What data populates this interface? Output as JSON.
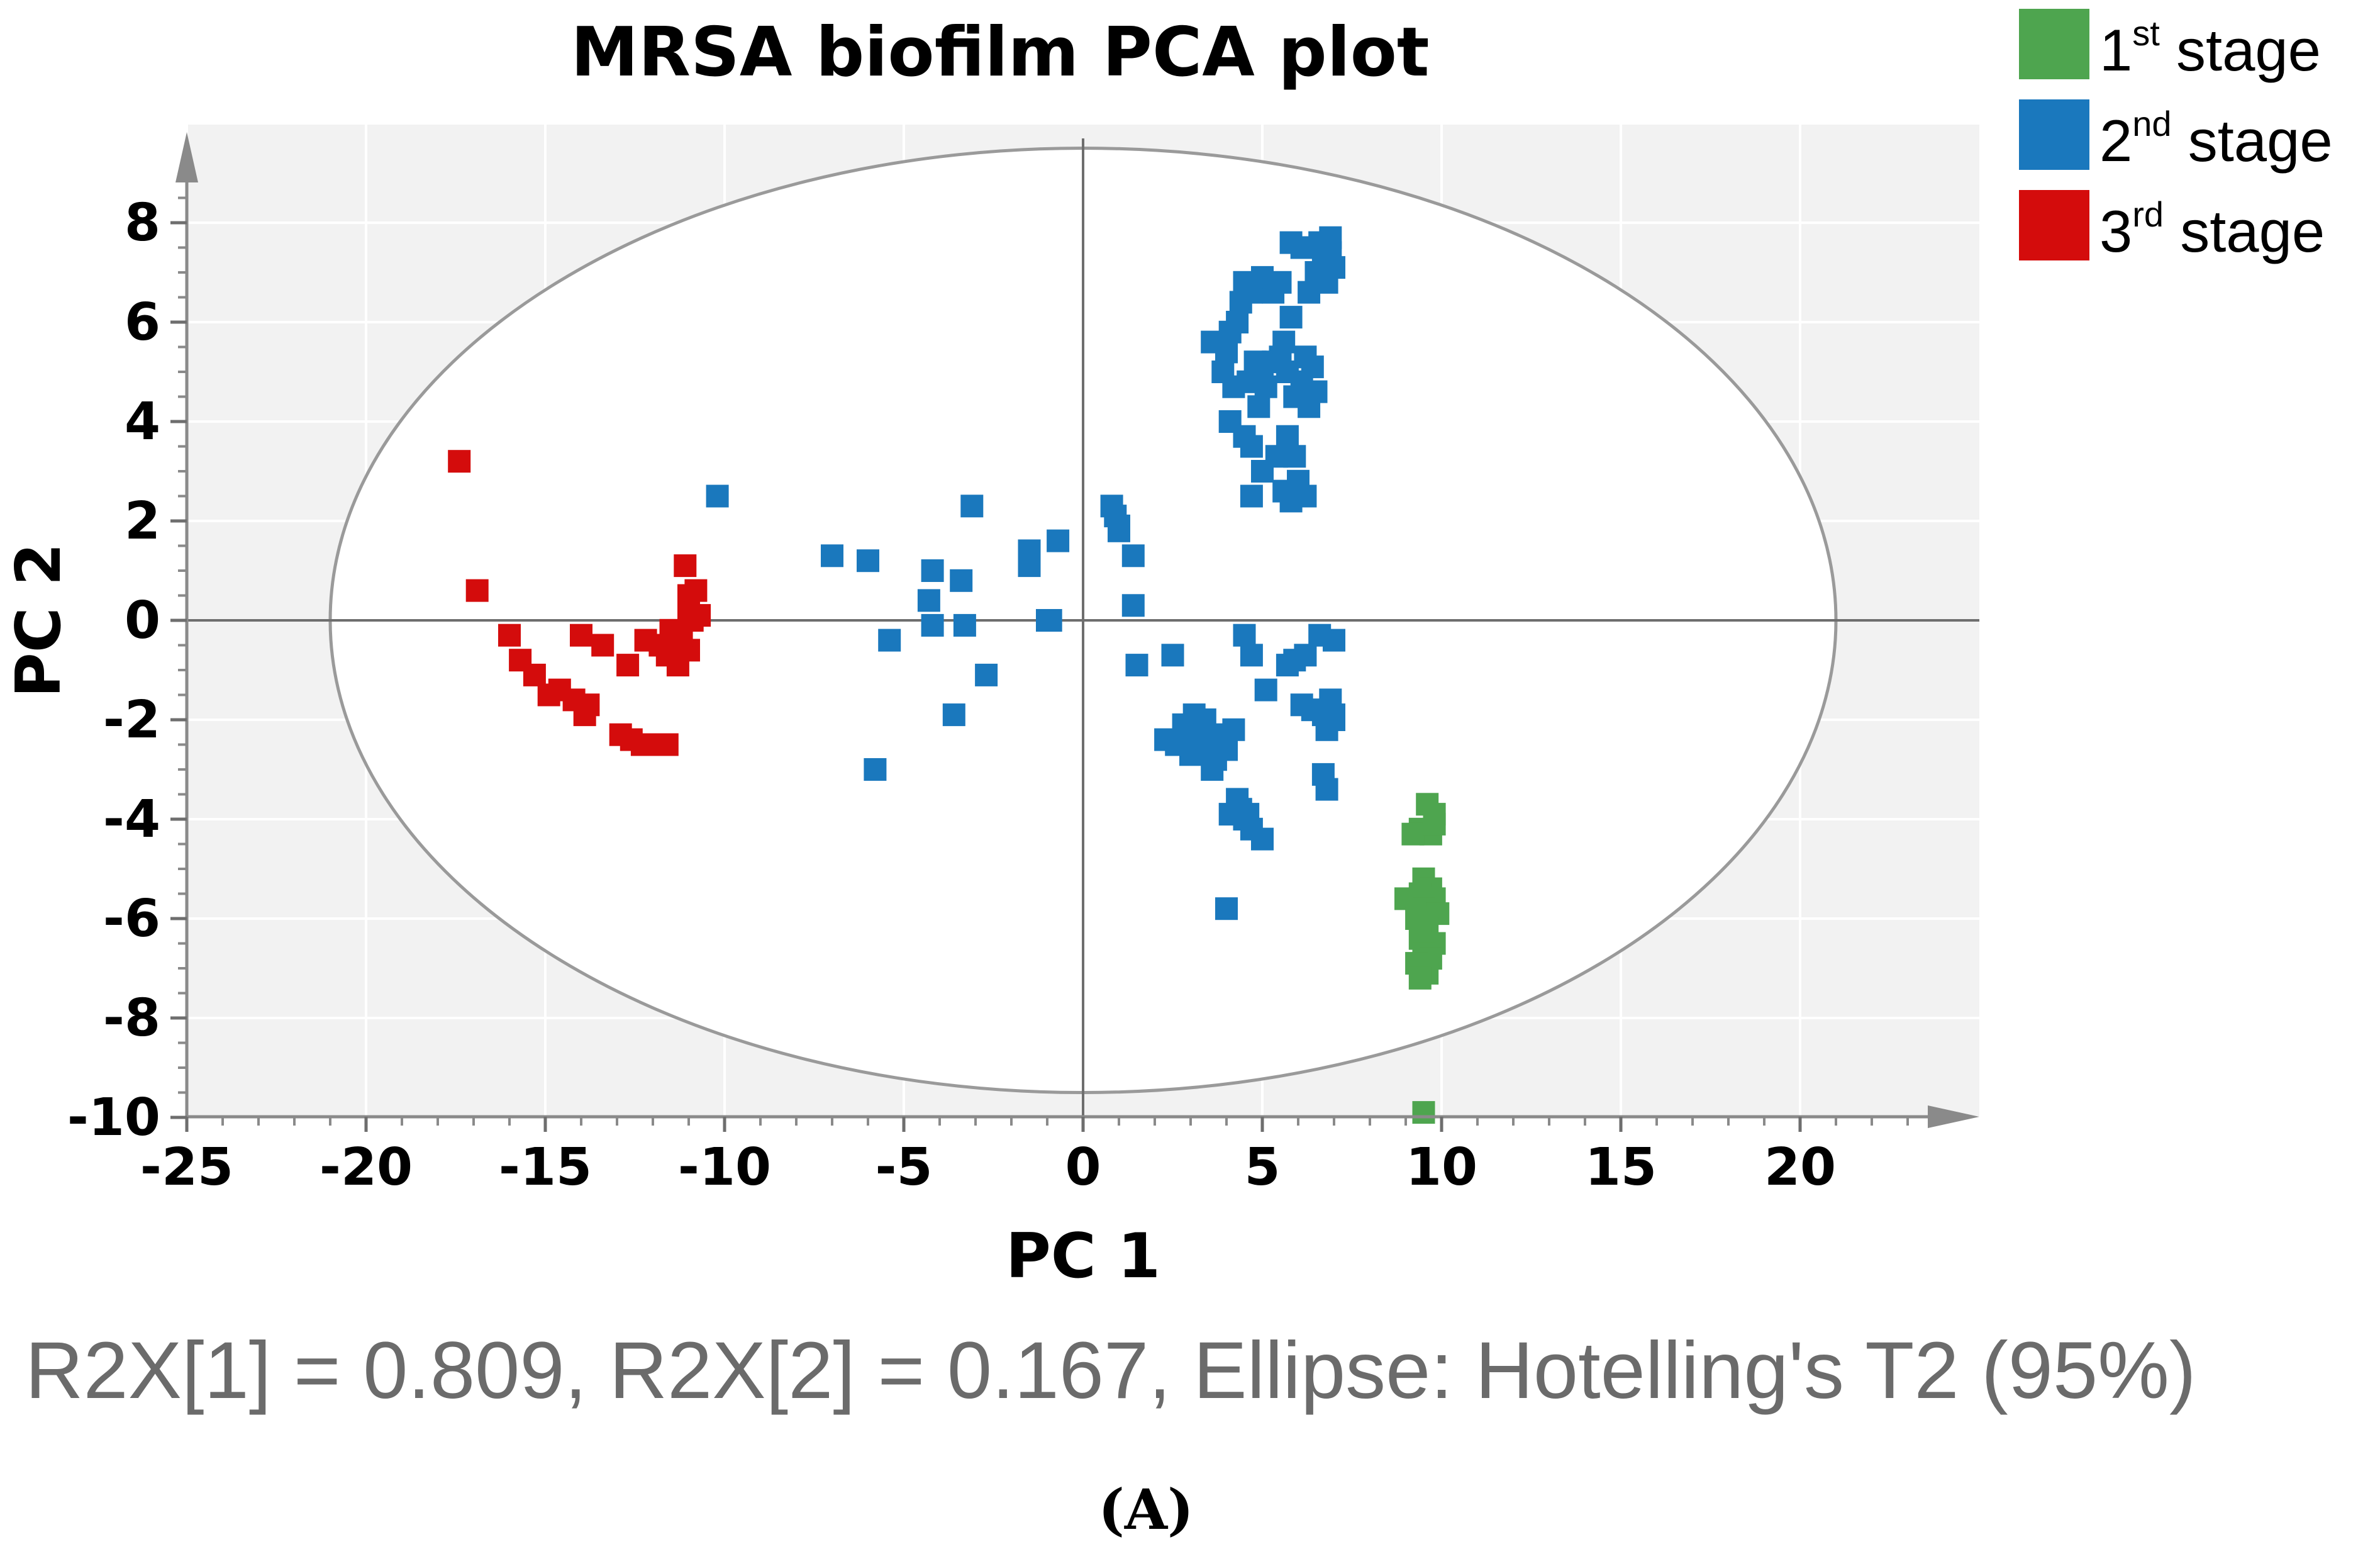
{
  "chart_data": {
    "type": "scatter",
    "title": "MRSA biofilm PCA plot",
    "xlabel": "PC 1",
    "ylabel": "PC 2",
    "xlim": [
      -25,
      25
    ],
    "ylim": [
      -10,
      10
    ],
    "xticks": [
      -25,
      -20,
      -15,
      -10,
      -5,
      0,
      5,
      10,
      15,
      20
    ],
    "yticks": [
      -10,
      -8,
      -6,
      -4,
      -2,
      0,
      2,
      4,
      6,
      8
    ],
    "grid": true,
    "legend_position": "top-right",
    "ellipse": {
      "label": "Hotelling's T2 (95%)",
      "cx": 0,
      "cy": 0,
      "rx": 21,
      "ry": 9.5
    },
    "footnote": "R2X[1] = 0.809, R2X[2] = 0.167, Ellipse: Hotelling's T2 (95%)",
    "panel_label": "(A)",
    "series": [
      {
        "name": "1st stage",
        "num": "1",
        "sup": "st",
        "word": "stage",
        "color": "#4ea54f",
        "points": [
          [
            9.6,
            -3.7
          ],
          [
            9.8,
            -3.9
          ],
          [
            9.4,
            -4.2
          ],
          [
            9.7,
            -4.3
          ],
          [
            9.2,
            -4.3
          ],
          [
            9.8,
            -4.1
          ],
          [
            9.5,
            -5.2
          ],
          [
            9.7,
            -5.4
          ],
          [
            9.4,
            -5.5
          ],
          [
            9.0,
            -5.6
          ],
          [
            9.8,
            -5.6
          ],
          [
            9.5,
            -5.8
          ],
          [
            9.9,
            -5.9
          ],
          [
            9.3,
            -6.0
          ],
          [
            9.6,
            -6.2
          ],
          [
            9.4,
            -6.4
          ],
          [
            9.8,
            -6.5
          ],
          [
            9.5,
            -6.7
          ],
          [
            9.7,
            -6.8
          ],
          [
            9.3,
            -6.9
          ],
          [
            9.6,
            -7.1
          ],
          [
            9.4,
            -7.2
          ],
          [
            9.5,
            -9.9
          ]
        ]
      },
      {
        "name": "2nd stage",
        "num": "2",
        "sup": "nd",
        "word": "stage",
        "color": "#1a78bd",
        "points": [
          [
            -10.2,
            2.5
          ],
          [
            -7.0,
            1.3
          ],
          [
            -6.0,
            1.2
          ],
          [
            -5.8,
            -3.0
          ],
          [
            -5.4,
            -0.4
          ],
          [
            -4.2,
            1.0
          ],
          [
            -4.3,
            0.4
          ],
          [
            -4.2,
            -0.1
          ],
          [
            -3.6,
            -1.9
          ],
          [
            -3.4,
            0.8
          ],
          [
            -3.3,
            -0.1
          ],
          [
            -3.1,
            2.3
          ],
          [
            -2.7,
            -1.1
          ],
          [
            -1.5,
            1.4
          ],
          [
            -1.5,
            1.1
          ],
          [
            -1.0,
            0.0
          ],
          [
            -0.9,
            0.0
          ],
          [
            -0.7,
            1.6
          ],
          [
            0.8,
            2.3
          ],
          [
            0.9,
            2.1
          ],
          [
            1.0,
            1.9
          ],
          [
            1.0,
            1.8
          ],
          [
            1.4,
            1.3
          ],
          [
            1.4,
            0.3
          ],
          [
            1.5,
            -0.9
          ],
          [
            2.5,
            -0.7
          ],
          [
            2.3,
            -2.4
          ],
          [
            2.6,
            -2.5
          ],
          [
            2.8,
            -2.1
          ],
          [
            3.1,
            -1.9
          ],
          [
            3.2,
            -2.3
          ],
          [
            3.0,
            -2.7
          ],
          [
            3.5,
            -2.6
          ],
          [
            3.7,
            -2.8
          ],
          [
            3.8,
            -2.3
          ],
          [
            3.4,
            -2.0
          ],
          [
            3.6,
            -3.0
          ],
          [
            4.2,
            -2.2
          ],
          [
            4.0,
            -2.6
          ],
          [
            4.3,
            -3.6
          ],
          [
            4.4,
            -3.8
          ],
          [
            4.5,
            -4.0
          ],
          [
            4.1,
            -3.9
          ],
          [
            4.7,
            -4.2
          ],
          [
            4.6,
            -3.9
          ],
          [
            5.0,
            -4.4
          ],
          [
            4.0,
            -5.8
          ],
          [
            4.5,
            -0.3
          ],
          [
            4.7,
            -0.7
          ],
          [
            5.1,
            -1.4
          ],
          [
            5.7,
            -0.9
          ],
          [
            5.9,
            -0.8
          ],
          [
            6.2,
            -0.7
          ],
          [
            6.6,
            -0.3
          ],
          [
            7.0,
            -0.4
          ],
          [
            6.1,
            -1.7
          ],
          [
            6.4,
            -1.8
          ],
          [
            6.7,
            -1.9
          ],
          [
            6.9,
            -1.6
          ],
          [
            7.0,
            -1.9
          ],
          [
            6.8,
            -2.2
          ],
          [
            7.0,
            -2.0
          ],
          [
            6.7,
            -3.1
          ],
          [
            6.8,
            -3.4
          ],
          [
            3.6,
            5.6
          ],
          [
            3.9,
            5.0
          ],
          [
            4.0,
            5.4
          ],
          [
            4.1,
            5.8
          ],
          [
            4.3,
            6.0
          ],
          [
            4.4,
            6.4
          ],
          [
            4.2,
            4.7
          ],
          [
            4.6,
            4.8
          ],
          [
            4.8,
            5.2
          ],
          [
            5.0,
            5.0
          ],
          [
            5.1,
            4.7
          ],
          [
            4.9,
            4.3
          ],
          [
            5.3,
            5.2
          ],
          [
            5.5,
            5.3
          ],
          [
            5.7,
            5.0
          ],
          [
            5.9,
            4.5
          ],
          [
            6.1,
            4.8
          ],
          [
            6.2,
            5.3
          ],
          [
            6.4,
            5.1
          ],
          [
            6.5,
            4.6
          ],
          [
            5.6,
            5.6
          ],
          [
            5.8,
            6.1
          ],
          [
            5.3,
            6.6
          ],
          [
            5.0,
            6.9
          ],
          [
            4.7,
            6.6
          ],
          [
            4.5,
            6.8
          ],
          [
            5.5,
            6.8
          ],
          [
            6.5,
            7.0
          ],
          [
            6.7,
            7.2
          ],
          [
            6.9,
            7.4
          ],
          [
            6.8,
            6.8
          ],
          [
            7.0,
            7.1
          ],
          [
            6.6,
            7.6
          ],
          [
            6.9,
            7.7
          ],
          [
            5.8,
            7.6
          ],
          [
            6.1,
            7.5
          ],
          [
            6.3,
            6.6
          ],
          [
            4.5,
            3.7
          ],
          [
            4.7,
            3.5
          ],
          [
            4.1,
            4.0
          ],
          [
            5.0,
            3.0
          ],
          [
            5.4,
            3.3
          ],
          [
            5.7,
            3.7
          ],
          [
            5.9,
            3.3
          ],
          [
            6.3,
            4.3
          ],
          [
            4.7,
            2.5
          ],
          [
            5.6,
            2.6
          ],
          [
            5.8,
            2.4
          ],
          [
            6.0,
            2.8
          ],
          [
            6.2,
            2.5
          ]
        ]
      },
      {
        "name": "3rd stage",
        "num": "3",
        "sup": "rd",
        "word": "stage",
        "color": "#d40c0c",
        "points": [
          [
            -17.4,
            3.2
          ],
          [
            -16.9,
            0.6
          ],
          [
            -16.0,
            -0.3
          ],
          [
            -15.7,
            -0.8
          ],
          [
            -15.3,
            -1.1
          ],
          [
            -14.9,
            -1.5
          ],
          [
            -14.6,
            -1.4
          ],
          [
            -14.2,
            -1.6
          ],
          [
            -13.9,
            -1.9
          ],
          [
            -13.8,
            -1.7
          ],
          [
            -14.0,
            -0.3
          ],
          [
            -13.4,
            -0.5
          ],
          [
            -12.9,
            -2.3
          ],
          [
            -12.6,
            -2.4
          ],
          [
            -12.7,
            -0.9
          ],
          [
            -12.3,
            -2.5
          ],
          [
            -12.0,
            -2.5
          ],
          [
            -11.6,
            -2.5
          ],
          [
            -12.2,
            -0.4
          ],
          [
            -11.8,
            -0.5
          ],
          [
            -11.5,
            -0.2
          ],
          [
            -11.6,
            -0.7
          ],
          [
            -11.3,
            -0.9
          ],
          [
            -11.0,
            -0.6
          ],
          [
            -11.2,
            -0.3
          ],
          [
            -10.9,
            0.0
          ],
          [
            -11.0,
            0.2
          ],
          [
            -10.7,
            0.1
          ],
          [
            -11.0,
            0.5
          ],
          [
            -10.8,
            0.6
          ],
          [
            -11.1,
            1.1
          ]
        ]
      }
    ]
  }
}
